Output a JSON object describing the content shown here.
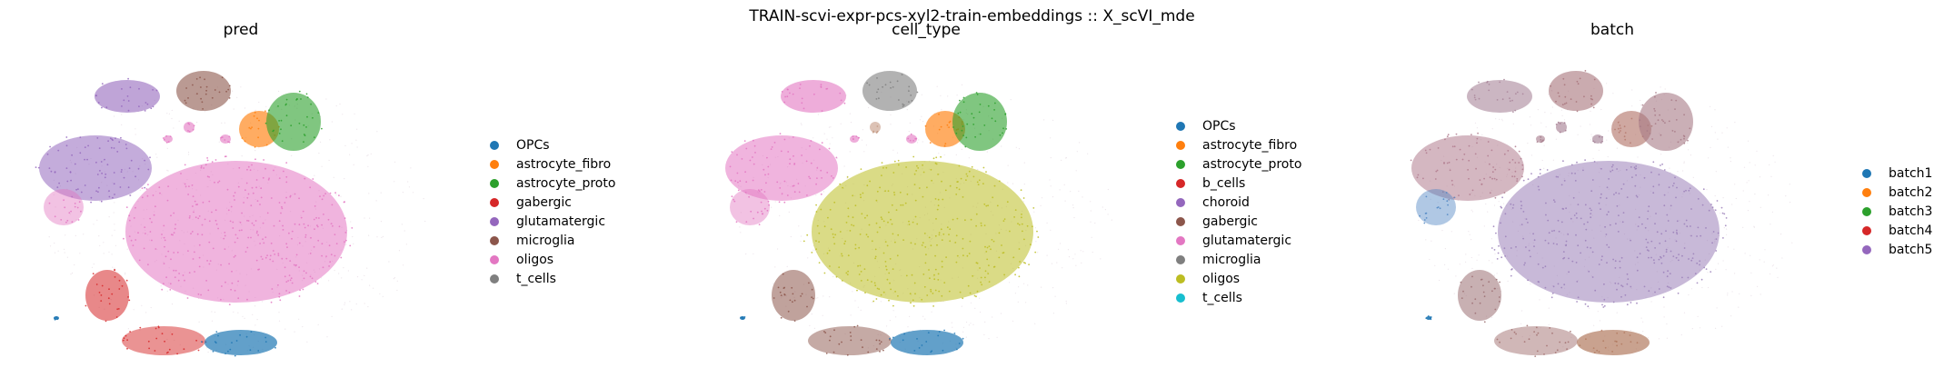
{
  "figure": {
    "suptitle": "TRAIN-scvi-expr-pcs-xyl2-train-embeddings :: X_scVI_mde"
  },
  "chart_data": [
    {
      "type": "scatter",
      "title": "pred",
      "xlabel": "",
      "ylabel": "",
      "axes_visible": false,
      "legend_placement": "right",
      "legend": [
        {
          "label": "OPCs",
          "color": "#1f77b4"
        },
        {
          "label": "astrocyte_fibro",
          "color": "#ff7f0e"
        },
        {
          "label": "astrocyte_proto",
          "color": "#2ca02c"
        },
        {
          "label": "gabergic",
          "color": "#d62728"
        },
        {
          "label": "glutamatergic",
          "color": "#9467bd"
        },
        {
          "label": "microglia",
          "color": "#8c564b"
        },
        {
          "label": "oligos",
          "color": "#e377c2"
        },
        {
          "label": "t_cells",
          "color": "#7f7f7f"
        }
      ],
      "cluster_colors": {
        "oligo_main": "#e377c2",
        "glut_upper": "#9467bd",
        "glut_left": "#9467bd",
        "microglia": "#8c564b",
        "astro_fibro": "#ff7f0e",
        "astro_proto": "#2ca02c",
        "gaba_a": "#d62728",
        "gaba_b": "#d62728",
        "opc": "#1f77b4",
        "small_pink_a": "#e377c2",
        "small_pink_b": "#e377c2",
        "small_pink_c": "#e377c2",
        "left_pink": "#e377c2",
        "tiny_blue": "#1f77b4"
      }
    },
    {
      "type": "scatter",
      "title": "cell_type",
      "xlabel": "",
      "ylabel": "",
      "axes_visible": false,
      "legend_placement": "right",
      "legend": [
        {
          "label": "OPCs",
          "color": "#1f77b4"
        },
        {
          "label": "astrocyte_fibro",
          "color": "#ff7f0e"
        },
        {
          "label": "astrocyte_proto",
          "color": "#2ca02c"
        },
        {
          "label": "b_cells",
          "color": "#d62728"
        },
        {
          "label": "choroid",
          "color": "#9467bd"
        },
        {
          "label": "gabergic",
          "color": "#8c564b"
        },
        {
          "label": "glutamatergic",
          "color": "#e377c2"
        },
        {
          "label": "microglia",
          "color": "#7f7f7f"
        },
        {
          "label": "oligos",
          "color": "#bcbd22"
        },
        {
          "label": "t_cells",
          "color": "#17becf"
        }
      ],
      "cluster_colors": {
        "oligo_main": "#bcbd22",
        "glut_upper": "#e377c2",
        "glut_left": "#e377c2",
        "microglia": "#7f7f7f",
        "astro_fibro": "#ff7f0e",
        "astro_proto": "#2ca02c",
        "gaba_a": "#8c564b",
        "gaba_b": "#8c564b",
        "opc": "#1f77b4",
        "small_pink_a": "#c49a84",
        "small_pink_b": "#e377c2",
        "small_pink_c": "#e377c2",
        "left_pink": "#e377c2",
        "tiny_blue": "#1f77b4"
      }
    },
    {
      "type": "scatter",
      "title": "batch",
      "xlabel": "",
      "ylabel": "",
      "axes_visible": false,
      "legend_placement": "right",
      "legend": [
        {
          "label": "batch1",
          "color": "#1f77b4"
        },
        {
          "label": "batch2",
          "color": "#ff7f0e"
        },
        {
          "label": "batch3",
          "color": "#2ca02c"
        },
        {
          "label": "batch4",
          "color": "#d62728"
        },
        {
          "label": "batch5",
          "color": "#9467bd"
        }
      ],
      "cluster_colors": {
        "oligo_main": "#9a7fb8",
        "glut_upper": "#a9869a",
        "glut_left": "#b07b8e",
        "microglia": "#a7737a",
        "astro_fibro": "#b57a6e",
        "astro_proto": "#a77a86",
        "gaba_a": "#9b6f72",
        "gaba_b": "#a1706f",
        "opc": "#b27a60",
        "small_pink_a": "#a2798d",
        "small_pink_b": "#9f7a90",
        "small_pink_c": "#a57a8a",
        "left_pink": "#4f86c3",
        "tiny_blue": "#1f77b4"
      }
    }
  ]
}
